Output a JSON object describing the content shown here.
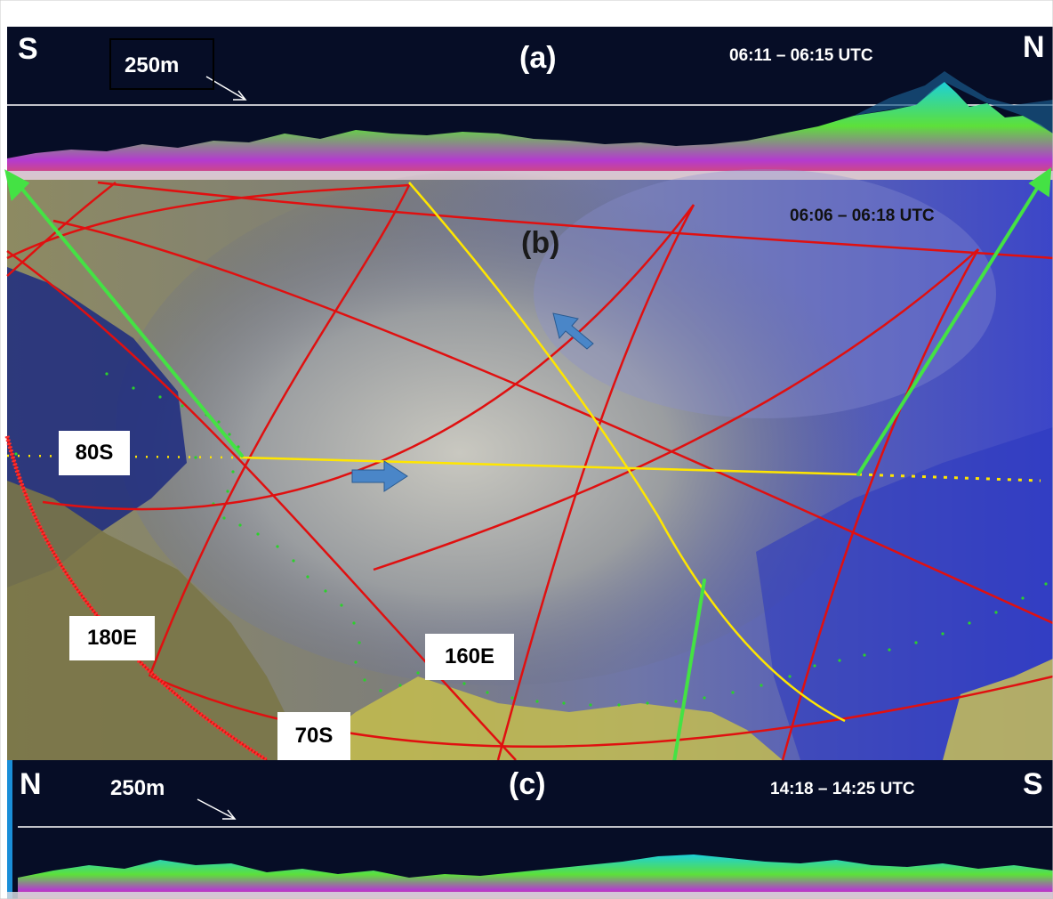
{
  "panel_a": {
    "direction_left": "S",
    "direction_right": "N",
    "letter": "(a)",
    "height_label": "250m",
    "time": "06:11 – 06:15 UTC"
  },
  "panel_b": {
    "letter": "(b)",
    "time": "06:06 – 06:18 UTC"
  },
  "panel_c": {
    "direction_left": "N",
    "direction_right": "S",
    "letter": "(c)",
    "height_label": "250m",
    "time": "14:18 – 14:25 UTC"
  },
  "map_labels": {
    "lat_80": "80S",
    "lon_180": "180E",
    "lon_160": "160E",
    "lat_70": "70S"
  },
  "colors": {
    "profile_background": "#060d26",
    "graticule": "#e01010",
    "satellite_track": "#ffe600",
    "direction_arrows": "#44e244",
    "motion_arrows": "#4a86c8",
    "coastline_dots": "#2bd12b"
  }
}
